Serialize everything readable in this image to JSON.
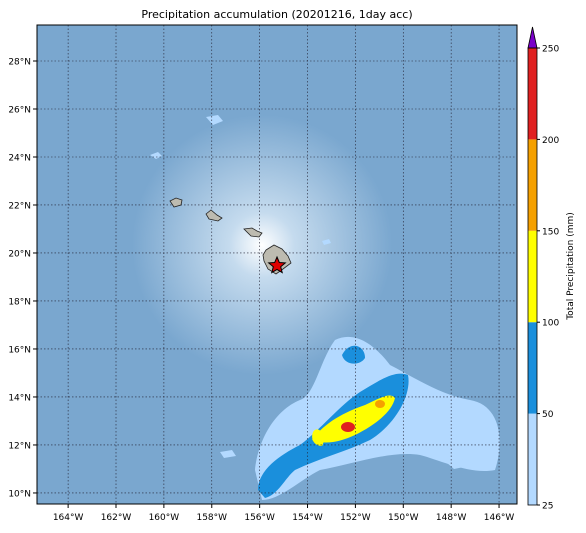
{
  "title": "Precipitation accumulation (20201216, 1day acc)",
  "map": {
    "xlim": [
      -165.3,
      -145.25
    ],
    "ylim": [
      9.54,
      29.5
    ],
    "lat_ticks": [
      {
        "value": 10,
        "label": "10°N"
      },
      {
        "value": 12,
        "label": "12°N"
      },
      {
        "value": 14,
        "label": "14°N"
      },
      {
        "value": 16,
        "label": "16°N"
      },
      {
        "value": 18,
        "label": "18°N"
      },
      {
        "value": 20,
        "label": "20°N"
      },
      {
        "value": 22,
        "label": "22°N"
      },
      {
        "value": 24,
        "label": "24°N"
      },
      {
        "value": 26,
        "label": "26°N"
      },
      {
        "value": 28,
        "label": "28°N"
      }
    ],
    "lon_ticks": [
      {
        "value": -164,
        "label": "164°W"
      },
      {
        "value": -162,
        "label": "162°W"
      },
      {
        "value": -160,
        "label": "160°W"
      },
      {
        "value": -158,
        "label": "158°W"
      },
      {
        "value": -156,
        "label": "156°W"
      },
      {
        "value": -154,
        "label": "154°W"
      },
      {
        "value": -152,
        "label": "152°W"
      },
      {
        "value": -150,
        "label": "150°W"
      },
      {
        "value": -148,
        "label": "148°W"
      },
      {
        "value": -146,
        "label": "146°W"
      }
    ],
    "grid": true
  },
  "colorbar": {
    "label": "Total Precipitation (mm)",
    "ticks": [
      25,
      50,
      100,
      150,
      200,
      250
    ],
    "colors": [
      "#b3d9ff",
      "#1a8fdc",
      "#ffff00",
      "#f5a000",
      "#e02020"
    ],
    "extend_color": "#7a00c8"
  }
}
